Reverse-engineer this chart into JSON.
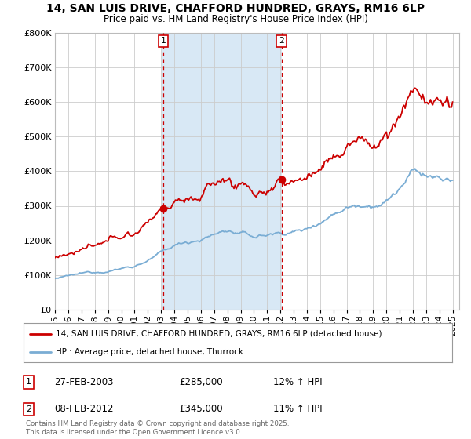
{
  "title1": "14, SAN LUIS DRIVE, CHAFFORD HUNDRED, GRAYS, RM16 6LP",
  "title2": "Price paid vs. HM Land Registry's House Price Index (HPI)",
  "background_color": "#ffffff",
  "plot_bg": "#ffffff",
  "shaded_region_color": "#d8e8f5",
  "grid_color": "#cccccc",
  "price_color": "#cc0000",
  "hpi_color": "#7aadd4",
  "sale1_year": 2003.125,
  "sale1_price": 285000,
  "sale2_year": 2012.083,
  "sale2_price": 345000,
  "ylim_max": 800000,
  "xlim_min": 1995,
  "xlim_max": 2025.5,
  "yticks": [
    0,
    100000,
    200000,
    300000,
    400000,
    500000,
    600000,
    700000,
    800000
  ],
  "legend_line1": "14, SAN LUIS DRIVE, CHAFFORD HUNDRED, GRAYS, RM16 6LP (detached house)",
  "legend_line2": "HPI: Average price, detached house, Thurrock",
  "ann1_num": "1",
  "ann1_date": "27-FEB-2003",
  "ann1_price": "£285,000",
  "ann1_hpi": "12% ↑ HPI",
  "ann2_num": "2",
  "ann2_date": "08-FEB-2012",
  "ann2_price": "£345,000",
  "ann2_hpi": "11% ↑ HPI",
  "copyright": "Contains HM Land Registry data © Crown copyright and database right 2025.\nThis data is licensed under the Open Government Licence v3.0."
}
